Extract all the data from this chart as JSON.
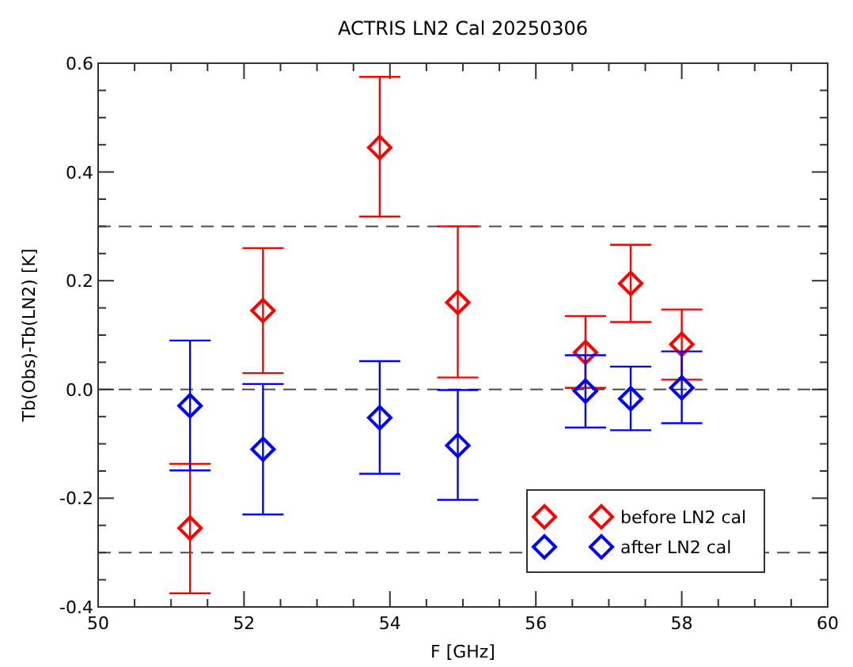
{
  "chart_data": {
    "type": "scatter",
    "title": "ACTRIS LN2 Cal 20250306",
    "xlabel": "F [GHz]",
    "ylabel": "Tb(Obs)-Tb(LN2) [K]",
    "xlim": [
      50,
      60
    ],
    "xticks": [
      50,
      52,
      54,
      56,
      58,
      60
    ],
    "ylim": [
      -0.4,
      0.6
    ],
    "yticks": [
      -0.4,
      {
        "value": -0.2,
        "label": "-0.2"
      },
      {
        "value": 0,
        "label": "0.0"
      },
      0.2,
      0.4,
      0.6
    ],
    "marker": "diamond",
    "grid": false,
    "legend": "bottom right",
    "ref_lines": [
      {
        "axis": "y",
        "value": 0.3,
        "color": "#000000",
        "line_style": "dashed"
      },
      {
        "axis": "y",
        "value": 0,
        "color": "#000000",
        "line_style": "dashed"
      },
      {
        "axis": "y",
        "value": -0.3,
        "color": "#000000",
        "line_style": "dashed"
      }
    ],
    "series": [
      {
        "name": "before LN2 cal",
        "color": "#ff0000",
        "x": [
          51.26,
          52.26,
          53.86,
          54.93,
          56.68,
          57.3,
          58.0
        ],
        "values": [
          -0.255,
          0.145,
          0.445,
          0.16,
          0.068,
          0.195,
          0.083
        ],
        "errors": [
          [
            -0.375,
            -0.137
          ],
          [
            0.03,
            0.26
          ],
          [
            0.318,
            0.575
          ],
          [
            0.022,
            0.3
          ],
          [
            0.003,
            0.135
          ],
          [
            0.124,
            0.266
          ],
          [
            0.018,
            0.147
          ]
        ]
      },
      {
        "name": "after LN2 cal",
        "color": "#0000ff",
        "x": [
          51.26,
          52.26,
          53.86,
          54.93,
          56.68,
          57.3,
          58.0
        ],
        "values": [
          -0.03,
          -0.11,
          -0.052,
          -0.103,
          -0.003,
          -0.017,
          0.003
        ],
        "errors": [
          [
            -0.149,
            0.09
          ],
          [
            -0.23,
            0.01
          ],
          [
            -0.155,
            0.052
          ],
          [
            -0.203,
            -0.001
          ],
          [
            -0.07,
            0.063
          ],
          [
            -0.075,
            0.042
          ],
          [
            -0.062,
            0.07
          ]
        ]
      }
    ]
  }
}
